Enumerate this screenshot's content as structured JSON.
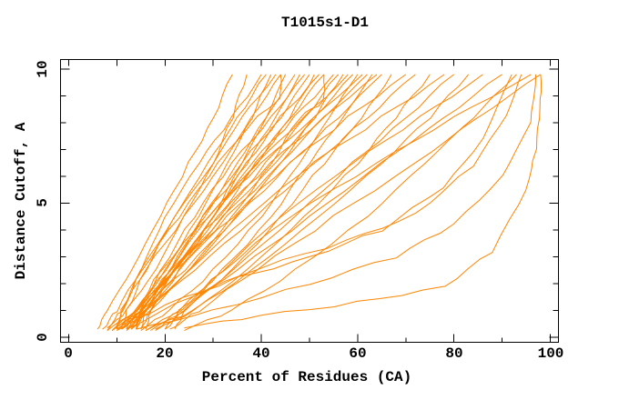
{
  "colors": {
    "curve": "#ff8500",
    "axis": "#000000",
    "background": "#ffffff",
    "text": "#000000"
  },
  "chart_data": {
    "type": "line",
    "title": "T1015s1-D1",
    "xlabel": "Percent of Residues (CA)",
    "ylabel": "Distance Cutoff, A",
    "xlim": [
      0,
      100
    ],
    "ylim": [
      0,
      10
    ],
    "grid": false,
    "legend": "none",
    "frame": "full-box",
    "x_major_ticks": [
      0,
      20,
      40,
      60,
      80,
      100
    ],
    "x_minor_ticks": [
      10,
      30,
      50,
      70,
      90
    ],
    "y_major_ticks": [
      0,
      5,
      10
    ],
    "y_minor_ticks": [
      1,
      2,
      3,
      4,
      6,
      7,
      8,
      9
    ],
    "series_description": "Per-model GDT curves: percent of CA residues (x) under distance cutoff in Angstroms (y)",
    "curves": [
      [
        [
          6,
          0.3
        ],
        [
          8,
          1
        ],
        [
          13,
          2.5
        ],
        [
          19,
          4.5
        ],
        [
          25,
          6.5
        ],
        [
          30,
          8.2
        ],
        [
          34,
          9.8
        ]
      ],
      [
        [
          8,
          0.25
        ],
        [
          12,
          1
        ],
        [
          18,
          2.5
        ],
        [
          24,
          4.5
        ],
        [
          30,
          6.5
        ],
        [
          34,
          8.2
        ],
        [
          37,
          9.8
        ]
      ],
      [
        [
          10,
          0.3
        ],
        [
          11,
          1
        ],
        [
          15,
          2.5
        ],
        [
          20,
          4.5
        ],
        [
          27,
          6.5
        ],
        [
          34,
          8.2
        ],
        [
          40,
          9.8
        ]
      ],
      [
        [
          7,
          0.3
        ],
        [
          10,
          1
        ],
        [
          15,
          2.5
        ],
        [
          22,
          4.5
        ],
        [
          29,
          6.5
        ],
        [
          35,
          8.2
        ],
        [
          41,
          9.8
        ]
      ],
      [
        [
          9,
          0.25
        ],
        [
          14,
          1
        ],
        [
          20,
          2.5
        ],
        [
          27,
          4.5
        ],
        [
          33,
          6.5
        ],
        [
          38,
          8.2
        ],
        [
          42,
          9.8
        ]
      ],
      [
        [
          11,
          0.3
        ],
        [
          12,
          1
        ],
        [
          16,
          2.5
        ],
        [
          22,
          4.5
        ],
        [
          30,
          6.5
        ],
        [
          36,
          8.2
        ],
        [
          43,
          9.8
        ]
      ],
      [
        [
          8,
          0.35
        ],
        [
          11,
          1
        ],
        [
          16,
          2.5
        ],
        [
          24,
          4.5
        ],
        [
          32,
          6.5
        ],
        [
          38,
          8.2
        ],
        [
          44,
          9.8
        ]
      ],
      [
        [
          12,
          0.25
        ],
        [
          17,
          1
        ],
        [
          23,
          2.5
        ],
        [
          30,
          4.5
        ],
        [
          36,
          6.5
        ],
        [
          41,
          8.2
        ],
        [
          45,
          9.8
        ]
      ],
      [
        [
          10,
          0.3
        ],
        [
          11,
          1
        ],
        [
          15,
          2.5
        ],
        [
          23,
          4.5
        ],
        [
          31,
          6.5
        ],
        [
          39,
          8.2
        ],
        [
          44,
          8.9
        ],
        [
          44,
          9.8
        ]
      ],
      [
        [
          13,
          0.3
        ],
        [
          16,
          1
        ],
        [
          21,
          2.5
        ],
        [
          28,
          4.5
        ],
        [
          35,
          6.5
        ],
        [
          41,
          8.2
        ],
        [
          47,
          9.8
        ]
      ],
      [
        [
          9,
          0.25
        ],
        [
          15,
          1
        ],
        [
          22,
          2.5
        ],
        [
          30,
          4.5
        ],
        [
          37,
          6.5
        ],
        [
          43,
          8.2
        ],
        [
          48,
          9.8
        ]
      ],
      [
        [
          14,
          0.3
        ],
        [
          15,
          1
        ],
        [
          19,
          2.5
        ],
        [
          26,
          4.5
        ],
        [
          34,
          6.5
        ],
        [
          42,
          8.2
        ],
        [
          49,
          9.8
        ]
      ],
      [
        [
          11,
          0.3
        ],
        [
          14,
          1
        ],
        [
          20,
          2.5
        ],
        [
          28,
          4.5
        ],
        [
          37,
          6.5
        ],
        [
          44,
          8.2
        ],
        [
          50,
          9.8
        ]
      ],
      [
        [
          8,
          0.25
        ],
        [
          14,
          1
        ],
        [
          22,
          2.5
        ],
        [
          31,
          4.5
        ],
        [
          39,
          6.5
        ],
        [
          46,
          8.2
        ],
        [
          51,
          9.8
        ]
      ],
      [
        [
          15,
          0.3
        ],
        [
          16,
          1
        ],
        [
          21,
          2.5
        ],
        [
          28,
          4.5
        ],
        [
          36,
          6.5
        ],
        [
          44,
          8.2
        ],
        [
          52,
          9.8
        ]
      ],
      [
        [
          12,
          0.3
        ],
        [
          15,
          1
        ],
        [
          22,
          2.5
        ],
        [
          30,
          4.5
        ],
        [
          39,
          6.5
        ],
        [
          46,
          8.2
        ],
        [
          53,
          9.8
        ]
      ],
      [
        [
          10,
          0.25
        ],
        [
          16,
          1
        ],
        [
          25,
          2.5
        ],
        [
          34,
          4.5
        ],
        [
          42,
          6.5
        ],
        [
          48,
          8.2
        ],
        [
          53,
          8.8
        ],
        [
          53,
          9.8
        ]
      ],
      [
        [
          16,
          0.3
        ],
        [
          17,
          1
        ],
        [
          22,
          2.5
        ],
        [
          30,
          4.5
        ],
        [
          38,
          6.5
        ],
        [
          47,
          8.2
        ],
        [
          55,
          9.8
        ]
      ],
      [
        [
          13,
          0.3
        ],
        [
          16,
          1
        ],
        [
          23,
          2.5
        ],
        [
          32,
          4.5
        ],
        [
          41,
          6.5
        ],
        [
          49,
          8.2
        ],
        [
          56,
          9.8
        ]
      ],
      [
        [
          9,
          0.25
        ],
        [
          16,
          1
        ],
        [
          25,
          2.5
        ],
        [
          35,
          4.5
        ],
        [
          44,
          6.5
        ],
        [
          51,
          8.2
        ],
        [
          57,
          9.8
        ]
      ],
      [
        [
          14,
          0.3
        ],
        [
          15,
          1
        ],
        [
          21,
          2.5
        ],
        [
          29,
          4.5
        ],
        [
          39,
          6.5
        ],
        [
          49,
          8.2
        ],
        [
          58,
          9.8
        ]
      ],
      [
        [
          11,
          0.3
        ],
        [
          15,
          1
        ],
        [
          22,
          2.5
        ],
        [
          32,
          4.5
        ],
        [
          43,
          6.5
        ],
        [
          51,
          8.2
        ],
        [
          59,
          9.8
        ]
      ],
      [
        [
          15,
          0.25
        ],
        [
          21,
          1
        ],
        [
          30,
          2.5
        ],
        [
          40,
          4.5
        ],
        [
          48,
          6.5
        ],
        [
          54,
          8.2
        ],
        [
          60,
          9.8
        ]
      ],
      [
        [
          12,
          0.3
        ],
        [
          14,
          1
        ],
        [
          19,
          2.5
        ],
        [
          29,
          4.5
        ],
        [
          40,
          6.5
        ],
        [
          51,
          8.2
        ],
        [
          61,
          9.8
        ]
      ],
      [
        [
          10,
          0.3
        ],
        [
          14,
          1
        ],
        [
          22,
          2.5
        ],
        [
          33,
          4.5
        ],
        [
          44,
          6.5
        ],
        [
          53,
          8.2
        ],
        [
          62,
          9.8
        ]
      ],
      [
        [
          16,
          0.25
        ],
        [
          23,
          1
        ],
        [
          32,
          2.5
        ],
        [
          42,
          4.5
        ],
        [
          50,
          6.5
        ],
        [
          57,
          8.2
        ],
        [
          63,
          9.8
        ]
      ],
      [
        [
          13,
          0.3
        ],
        [
          15,
          1
        ],
        [
          21,
          2.5
        ],
        [
          31,
          4.5
        ],
        [
          42,
          6.5
        ],
        [
          53,
          8.2
        ],
        [
          64,
          9.8
        ]
      ],
      [
        [
          11,
          0.3
        ],
        [
          15,
          1
        ],
        [
          24,
          2.5
        ],
        [
          35,
          4.5
        ],
        [
          46,
          6.5
        ],
        [
          56,
          8.2
        ],
        [
          65,
          9.8
        ]
      ],
      [
        [
          17,
          0.25
        ],
        [
          24,
          1
        ],
        [
          34,
          2.5
        ],
        [
          44,
          4.5
        ],
        [
          53,
          6.5
        ],
        [
          61,
          8.2
        ],
        [
          67,
          9.8
        ]
      ],
      [
        [
          14,
          0.3
        ],
        [
          16,
          1
        ],
        [
          22,
          2.5
        ],
        [
          34,
          4.5
        ],
        [
          46,
          6.5
        ],
        [
          58,
          8.2
        ],
        [
          70,
          9.8
        ]
      ],
      [
        [
          12,
          0.3
        ],
        [
          16,
          1
        ],
        [
          26,
          2.5
        ],
        [
          39,
          4.5
        ],
        [
          51,
          6.5
        ],
        [
          62,
          8.2
        ],
        [
          72,
          9.8
        ]
      ],
      [
        [
          18,
          0.25
        ],
        [
          26,
          1
        ],
        [
          37,
          2.5
        ],
        [
          49,
          4.5
        ],
        [
          60,
          6.5
        ],
        [
          68,
          8.2
        ],
        [
          75,
          9.8
        ]
      ],
      [
        [
          15,
          0.3
        ],
        [
          17,
          1
        ],
        [
          25,
          2.5
        ],
        [
          37,
          4.5
        ],
        [
          51,
          6.5
        ],
        [
          65,
          8.2
        ],
        [
          78,
          9.8
        ]
      ],
      [
        [
          20,
          0.3
        ],
        [
          24,
          1
        ],
        [
          34,
          2.5
        ],
        [
          47,
          4.5
        ],
        [
          59,
          6.5
        ],
        [
          70,
          8.2
        ],
        [
          80,
          9.8
        ]
      ],
      [
        [
          16,
          0.25
        ],
        [
          26,
          1
        ],
        [
          38,
          2.5
        ],
        [
          52,
          4.5
        ],
        [
          65,
          6.5
        ],
        [
          75,
          8.2
        ],
        [
          83,
          9.8
        ]
      ],
      [
        [
          22,
          0.3
        ],
        [
          24,
          1
        ],
        [
          32,
          2.5
        ],
        [
          44,
          4.5
        ],
        [
          59,
          6.5
        ],
        [
          73,
          8.2
        ],
        [
          86,
          9.8
        ]
      ],
      [
        [
          18,
          0.3
        ],
        [
          23,
          1
        ],
        [
          35,
          2.5
        ],
        [
          50,
          4.5
        ],
        [
          65,
          6.5
        ],
        [
          78,
          8.2
        ],
        [
          90,
          9.8
        ]
      ],
      [
        [
          24,
          0.25
        ],
        [
          34,
          1
        ],
        [
          47,
          2.5
        ],
        [
          62,
          4.5
        ],
        [
          74,
          6.5
        ],
        [
          84,
          8.2
        ],
        [
          93,
          9.8
        ]
      ],
      [
        [
          20,
          0.3
        ],
        [
          23,
          1
        ],
        [
          32,
          2.5
        ],
        [
          46,
          4.5
        ],
        [
          64,
          6.5
        ],
        [
          80,
          8.2
        ],
        [
          96,
          9.8
        ]
      ],
      [
        [
          21,
          0.3
        ],
        [
          27,
          1
        ],
        [
          39,
          2.5
        ],
        [
          55,
          4.5
        ],
        [
          72,
          6.5
        ],
        [
          85,
          8.2
        ],
        [
          98,
          9.8
        ]
      ],
      [
        [
          24,
          0.35
        ],
        [
          40,
          0.8
        ],
        [
          60,
          1.3
        ],
        [
          78,
          1.9
        ],
        [
          88,
          3.2
        ],
        [
          95,
          5.5
        ],
        [
          97,
          7
        ],
        [
          98,
          8.6
        ],
        [
          98,
          9.8
        ]
      ],
      [
        [
          14,
          0.3
        ],
        [
          30,
          1
        ],
        [
          50,
          2
        ],
        [
          68,
          3
        ],
        [
          80,
          4.2
        ],
        [
          90,
          6
        ],
        [
          96,
          8
        ],
        [
          97,
          9.8
        ]
      ],
      [
        [
          12,
          0.3
        ],
        [
          25,
          1.5
        ],
        [
          40,
          2.6
        ],
        [
          58,
          3.6
        ],
        [
          72,
          4.6
        ],
        [
          84,
          6.4
        ],
        [
          91,
          8.3
        ],
        [
          94,
          9.8
        ]
      ],
      [
        [
          10,
          0.25
        ],
        [
          20,
          1.2
        ],
        [
          35,
          2.2
        ],
        [
          50,
          3
        ],
        [
          65,
          4
        ],
        [
          78,
          5.6
        ],
        [
          86,
          7.4
        ],
        [
          92,
          9.8
        ]
      ]
    ]
  }
}
